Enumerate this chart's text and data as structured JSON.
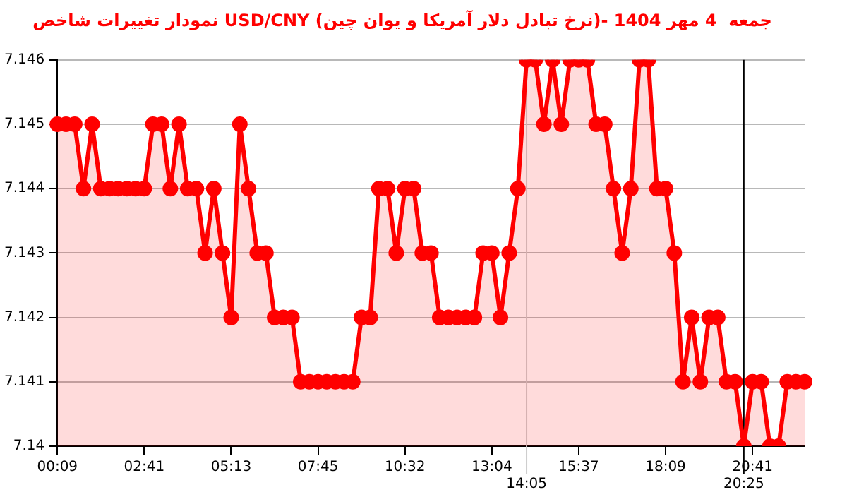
{
  "chart_data": {
    "type": "area",
    "title": "نمودار تغییرات شاخص USD/CNY (نرخ تبادل دلار آمریکا و یوان چین)- جمعه  4 مهر 1404",
    "categories": [
      "00:09",
      null,
      null,
      null,
      null,
      null,
      null,
      null,
      null,
      null,
      "02:41",
      null,
      null,
      null,
      null,
      null,
      null,
      null,
      null,
      null,
      "05:13",
      null,
      null,
      null,
      null,
      null,
      null,
      null,
      null,
      null,
      "07:45",
      null,
      null,
      null,
      null,
      null,
      null,
      null,
      null,
      null,
      "10:32",
      null,
      null,
      null,
      null,
      null,
      null,
      null,
      null,
      null,
      "13:04",
      null,
      null,
      null,
      "14:05",
      null,
      null,
      null,
      null,
      null,
      "15:37",
      null,
      null,
      null,
      null,
      null,
      null,
      null,
      null,
      null,
      "18:09",
      null,
      null,
      null,
      null,
      null,
      null,
      null,
      null,
      "20:25",
      "20:41",
      null,
      null,
      null,
      null,
      null,
      null
    ],
    "series": [
      {
        "color": "#ff0000",
        "values": [
          7.145,
          7.145,
          7.145,
          7.144,
          7.145,
          7.144,
          7.144,
          7.144,
          7.144,
          7.144,
          7.144,
          7.145,
          7.145,
          7.144,
          7.145,
          7.144,
          7.144,
          7.143,
          7.144,
          7.143,
          7.142,
          7.145,
          7.144,
          7.143,
          7.143,
          7.142,
          7.142,
          7.142,
          7.141,
          7.141,
          7.141,
          7.141,
          7.141,
          7.141,
          7.141,
          7.142,
          7.142,
          7.144,
          7.144,
          7.143,
          7.144,
          7.144,
          7.143,
          7.143,
          7.142,
          7.142,
          7.142,
          7.142,
          7.142,
          7.143,
          7.143,
          7.142,
          7.143,
          7.144,
          7.146,
          7.146,
          7.145,
          7.146,
          7.145,
          7.146,
          7.146,
          7.146,
          7.145,
          7.145,
          7.144,
          7.143,
          7.144,
          7.146,
          7.146,
          7.144,
          7.144,
          7.143,
          7.141,
          7.142,
          7.141,
          7.142,
          7.142,
          7.141,
          7.141,
          7.14,
          7.141,
          7.141,
          7.14,
          7.14,
          7.141,
          7.141,
          7.141
        ]
      }
    ],
    "ylim": [
      7.14,
      7.146
    ],
    "yticks": [
      7.14,
      7.141,
      7.142,
      7.143,
      7.144,
      7.145,
      7.146
    ],
    "ref_lines": [
      {
        "axis": "x",
        "value": "14:05",
        "color": "#cccccc"
      },
      {
        "axis": "x",
        "value": "20:25",
        "color": "#000000"
      }
    ],
    "grid": "y",
    "legend": false,
    "marker": "circle",
    "line_style": "solid"
  }
}
